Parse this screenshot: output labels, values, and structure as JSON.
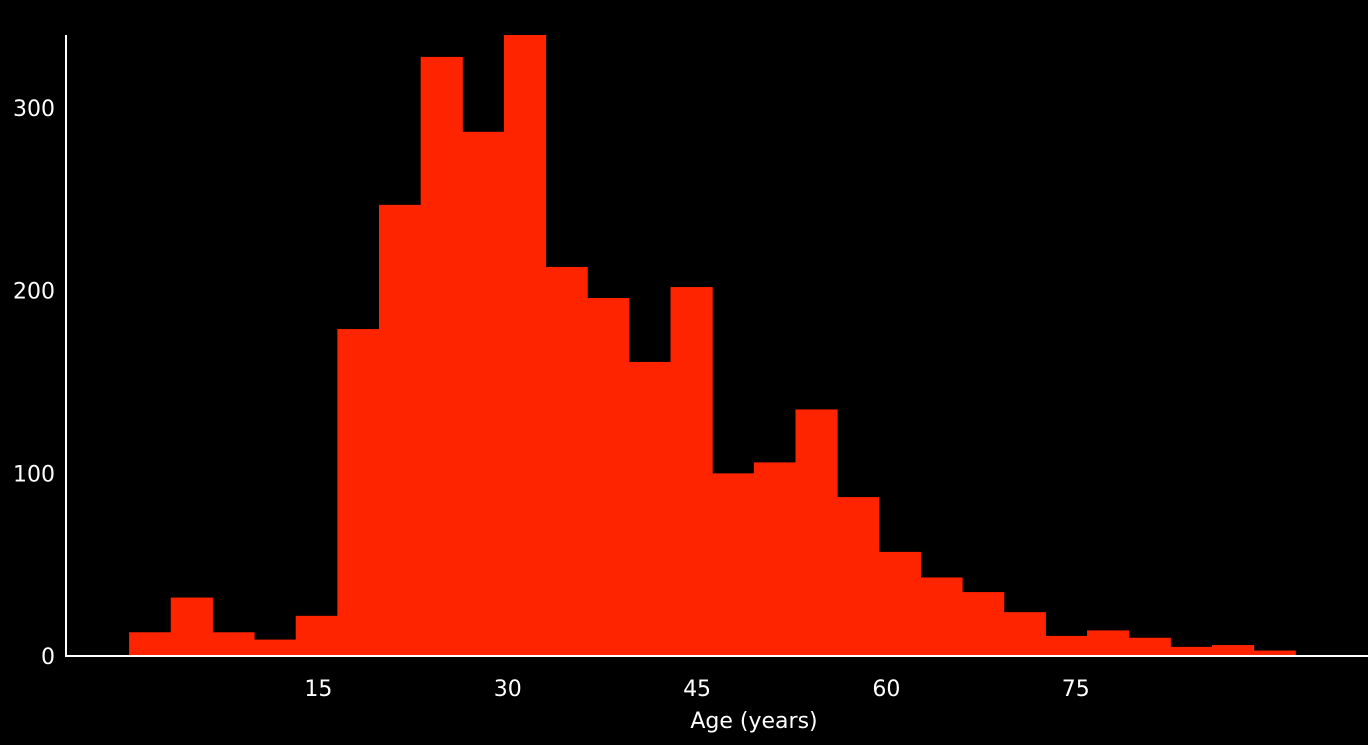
{
  "chart_data": {
    "type": "bar",
    "subtype": "histogram",
    "title": "",
    "xlabel": "Age (years)",
    "ylabel": "",
    "grid": false,
    "legend": "none",
    "colors": {
      "background": "#000000",
      "bar": "#ff2400",
      "axis": "#ffffff",
      "text": "#ffffff"
    },
    "xlim": [
      -5,
      98
    ],
    "ylim": [
      0,
      340
    ],
    "xticks": [
      15,
      30,
      45,
      60,
      75
    ],
    "xtick_labels": [
      "15",
      "30",
      "45",
      "60",
      "75"
    ],
    "yticks": [
      0,
      100,
      200,
      300
    ],
    "ytick_labels": [
      "0",
      "100",
      "200",
      "300"
    ],
    "bin_edges": [
      0,
      3.3,
      6.6,
      9.9,
      13.2,
      16.5,
      19.8,
      23.1,
      26.4,
      29.7,
      33.0,
      36.3,
      39.6,
      42.9,
      46.2,
      49.5,
      52.8,
      56.1,
      59.4,
      62.7,
      66.0,
      69.3,
      72.6,
      75.9,
      79.2,
      82.5,
      85.8,
      89.1,
      92.4
    ],
    "values": [
      13,
      32,
      13,
      9,
      22,
      179,
      247,
      328,
      287,
      340,
      213,
      196,
      161,
      202,
      100,
      106,
      135,
      87,
      57,
      43,
      35,
      24,
      11,
      14,
      10,
      5,
      6,
      3
    ]
  }
}
